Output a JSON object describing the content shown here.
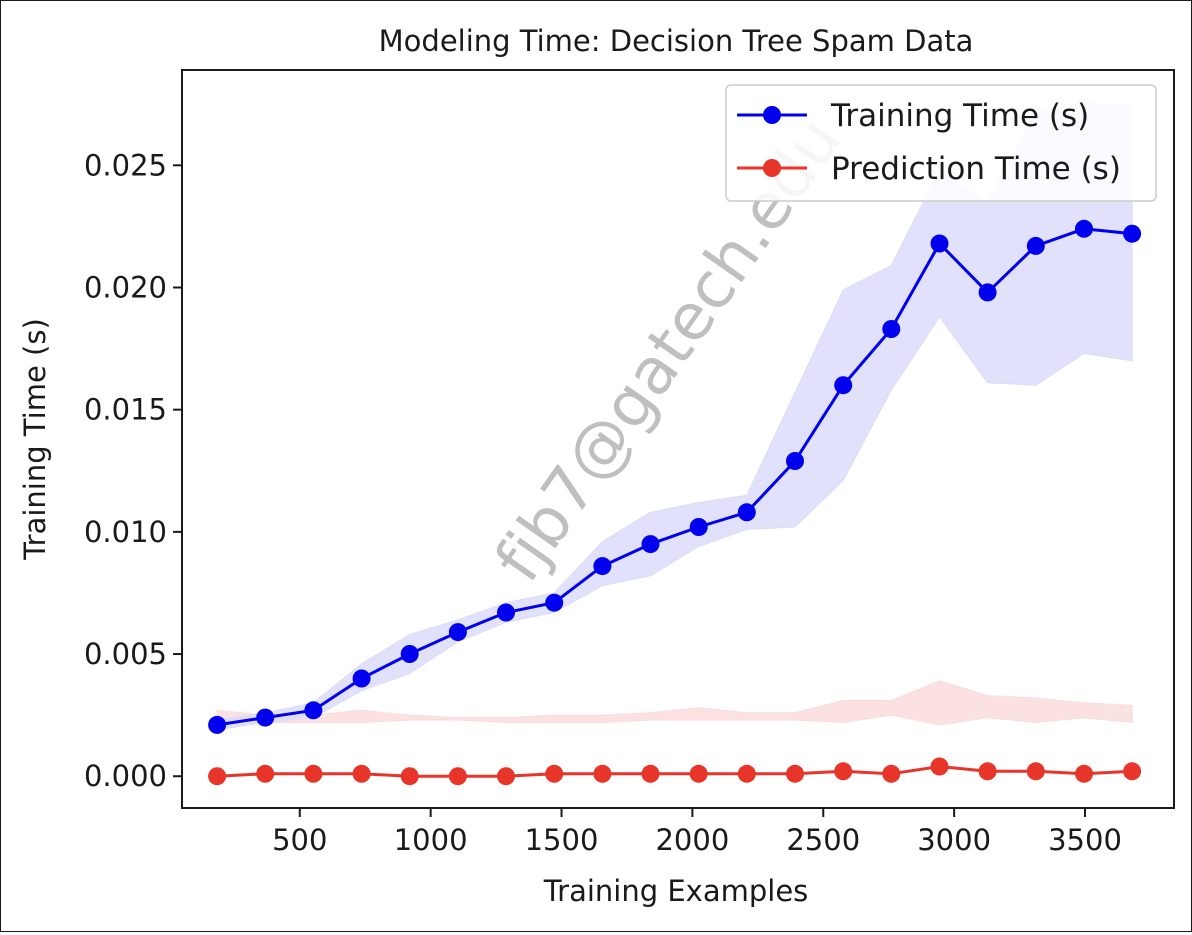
{
  "chart_data": {
    "type": "line",
    "title": "Modeling Time: Decision Tree Spam Data",
    "xlabel": "Training Examples",
    "ylabel": "Training Time (s)",
    "xlim": [
      50,
      3840
    ],
    "ylim": [
      -0.0013,
      0.0289
    ],
    "xticks": [
      500,
      1000,
      1500,
      2000,
      2500,
      3000,
      3500
    ],
    "xtick_labels": [
      "500",
      "1000",
      "1500",
      "2000",
      "2500",
      "3000",
      "3500"
    ],
    "yticks": [
      0.0,
      0.005,
      0.01,
      0.015,
      0.02,
      0.025
    ],
    "ytick_labels": [
      "0.000",
      "0.005",
      "0.010",
      "0.015",
      "0.020",
      "0.025"
    ],
    "grid": false,
    "legend_position": "top-right",
    "x": [
      184,
      368,
      552,
      736,
      920,
      1104,
      1288,
      1472,
      1656,
      1840,
      2024,
      2208,
      2392,
      2576,
      2760,
      2944,
      3128,
      3312,
      3496,
      3680
    ],
    "series": [
      {
        "name": "Training Time (s)",
        "color": "#0000ee",
        "band_color": "#dcdcfa",
        "values": [
          0.0021,
          0.0024,
          0.0027,
          0.004,
          0.005,
          0.0059,
          0.0067,
          0.0071,
          0.0086,
          0.0095,
          0.0102,
          0.0108,
          0.0129,
          0.016,
          0.0183,
          0.0218,
          0.0198,
          0.0217,
          0.0224,
          0.0222
        ],
        "upper": [
          0.0023,
          0.0026,
          0.003,
          0.0046,
          0.0058,
          0.0064,
          0.0071,
          0.0075,
          0.0096,
          0.0108,
          0.0112,
          0.0115,
          0.0157,
          0.0199,
          0.0209,
          0.0248,
          0.0235,
          0.0272,
          0.0276,
          0.0274
        ],
        "lower": [
          0.0019,
          0.0022,
          0.0024,
          0.0035,
          0.0042,
          0.0055,
          0.0063,
          0.0067,
          0.0078,
          0.0082,
          0.0094,
          0.0101,
          0.0102,
          0.0121,
          0.0158,
          0.0188,
          0.0161,
          0.016,
          0.0173,
          0.017
        ]
      },
      {
        "name": "Prediction Time (s)",
        "color": "#e8352a",
        "band_color": "#fadcdc",
        "values": [
          0.0,
          0.0001,
          0.0001,
          0.0001,
          0.0,
          0.0,
          0.0,
          0.0001,
          0.0001,
          0.0001,
          0.0001,
          0.0001,
          0.0001,
          0.0002,
          0.0001,
          0.0004,
          0.0002,
          0.0002,
          0.0001,
          0.0002
        ],
        "upper": [
          0.0027,
          0.0025,
          0.0025,
          0.0027,
          0.0025,
          0.0024,
          0.0024,
          0.0025,
          0.0025,
          0.0026,
          0.0028,
          0.0026,
          0.0026,
          0.0031,
          0.0031,
          0.0039,
          0.0033,
          0.0032,
          0.003,
          0.0029
        ],
        "lower": [
          0.0022,
          0.0022,
          0.0022,
          0.0022,
          0.0023,
          0.0023,
          0.0022,
          0.0022,
          0.0022,
          0.0023,
          0.0023,
          0.0023,
          0.0023,
          0.0022,
          0.0025,
          0.0021,
          0.0024,
          0.0022,
          0.0024,
          0.0022
        ]
      }
    ]
  },
  "watermark": "fjb7@gatech.edu",
  "colors": {
    "axes": "#1a1a1a",
    "background": "#ffffff"
  }
}
